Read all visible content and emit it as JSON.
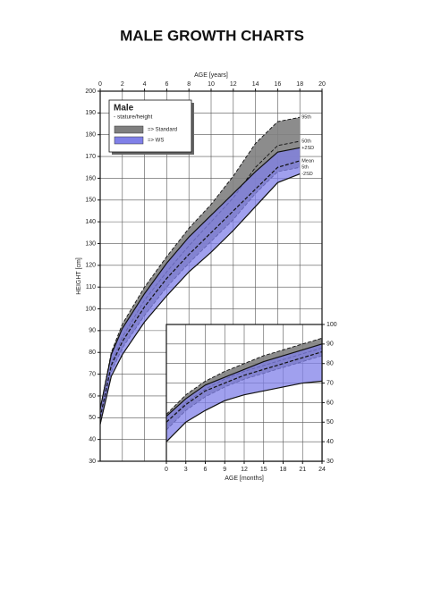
{
  "title": "MALE GROWTH CHARTS",
  "chart_data": [
    {
      "type": "band",
      "x_axis_label": "AGE [years]",
      "y_axis_label": "HEIGHT [cm]",
      "x_axis_position": "top",
      "y_axis_position": "left",
      "grid": true,
      "xlim": [
        0,
        20
      ],
      "ylim": [
        30,
        200
      ],
      "xticks": [
        0,
        2,
        4,
        6,
        8,
        10,
        12,
        14,
        16,
        18,
        20
      ],
      "yticks": [
        30,
        40,
        50,
        60,
        70,
        80,
        90,
        100,
        110,
        120,
        130,
        140,
        150,
        160,
        170,
        180,
        190,
        200
      ],
      "legend": {
        "title": "Male",
        "subtitle": "- stature/height"
      },
      "x": [
        0,
        1,
        2,
        4,
        6,
        8,
        10,
        12,
        14,
        16,
        18
      ],
      "bands": [
        {
          "name": "=> Standard",
          "color": "#7f7f7f",
          "upper": {
            "name": "95th",
            "values": [
              54,
              80,
              93,
              110,
              124,
              137,
              148,
              161,
              176,
              186,
              188
            ]
          },
          "middle": {
            "name": "50th",
            "values": [
              50,
              75,
              87,
              104,
              117,
              129,
              140,
              151,
              165,
              175,
              177
            ]
          },
          "lower": {
            "name": "5th",
            "values": [
              47,
              71,
              82,
              97,
              110,
              121,
              131,
              141,
              153,
              163,
              165
            ]
          }
        },
        {
          "name": "=> WS",
          "color": "#8080e8",
          "upper": {
            "name": "+2SD",
            "values": [
              54,
              79,
              91,
              107,
              121,
              133,
              143,
              153,
              163,
              172,
              174
            ]
          },
          "middle": {
            "name": "Mean",
            "values": [
              50,
              74,
              85,
              101,
              114,
              125,
              135,
              145,
              155,
              165,
              168
            ]
          },
          "lower": {
            "name": "-2SD",
            "values": [
              47,
              69,
              79,
              94,
              106,
              117,
              126,
              136,
              147,
              158,
              162
            ]
          }
        }
      ]
    },
    {
      "type": "band",
      "x_axis_label": "AGE [months]",
      "x_axis_position": "bottom",
      "y_axis_position": "right",
      "grid": true,
      "xlim": [
        0,
        24
      ],
      "ylim": [
        30,
        100
      ],
      "xticks": [
        0,
        3,
        6,
        9,
        12,
        15,
        18,
        21,
        24
      ],
      "yticks": [
        30,
        40,
        50,
        60,
        70,
        80,
        90,
        100
      ],
      "x": [
        0,
        3,
        6,
        9,
        12,
        15,
        18,
        21,
        24
      ],
      "bands": [
        {
          "color": "#7f7f7f",
          "upper": {
            "values": [
              54,
              64,
              71,
              76,
              80,
              84,
              87,
              90,
              93
            ]
          },
          "middle": {
            "values": [
              50,
              60,
              67,
              72,
              76,
              79,
              82,
              85,
              88
            ]
          },
          "lower": {
            "values": [
              46,
              56,
              63,
              68,
              72,
              75,
              78,
              81,
              84
            ]
          }
        },
        {
          "color": "#8080e8",
          "upper": {
            "values": [
              53,
              62,
              69,
              73,
              77,
              81,
              84,
              87,
              90
            ]
          },
          "middle": {
            "values": [
              50,
              59,
              66,
              70,
              74,
              77,
              80,
              83,
              86
            ]
          },
          "lower": {
            "values": [
              40,
              50,
              56,
              61,
              64,
              66,
              68,
              70,
              71
            ]
          }
        }
      ]
    }
  ]
}
